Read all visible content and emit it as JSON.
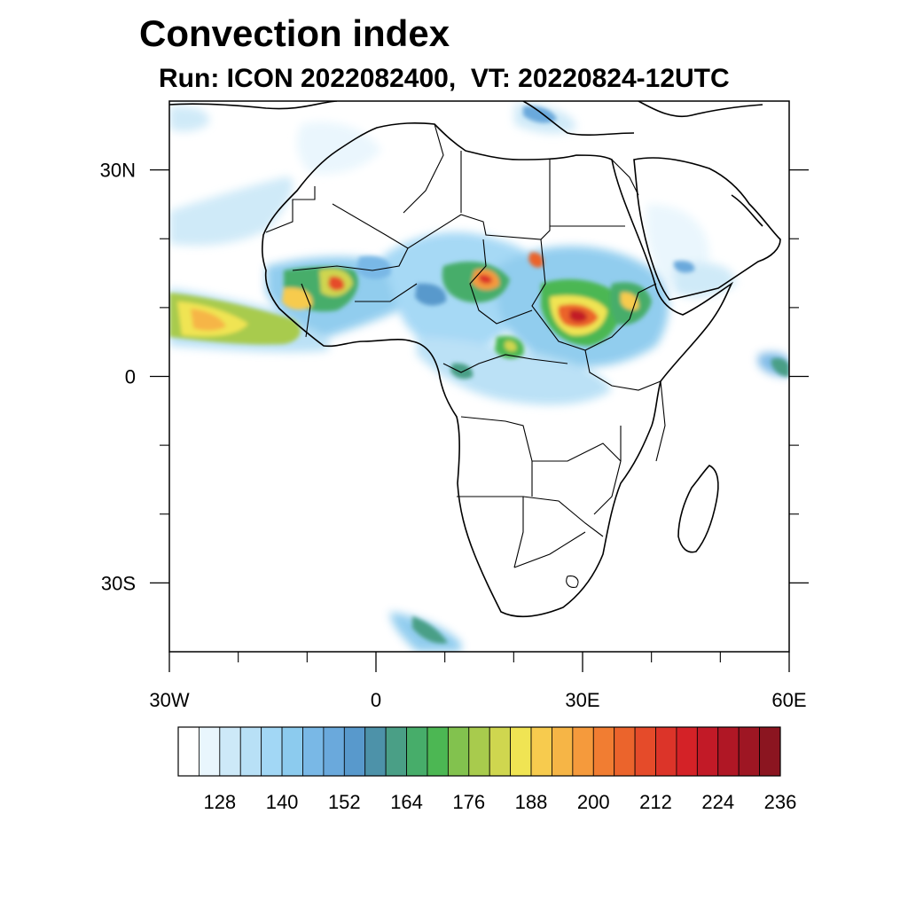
{
  "title": "Convection index",
  "subtitle": "Run: ICON 2022082400,  VT: 20220824-12UTC",
  "axes": {
    "lon_min": -30,
    "lon_max": 60,
    "lat_min": -40,
    "lat_max": 40,
    "lon_ticks": [
      {
        "value": -30,
        "label": "30W"
      },
      {
        "value": 0,
        "label": "0"
      },
      {
        "value": 30,
        "label": "30E"
      },
      {
        "value": 60,
        "label": "60E"
      }
    ],
    "lat_ticks": [
      {
        "value": 30,
        "label": "30N"
      },
      {
        "value": 0,
        "label": "0"
      },
      {
        "value": -30,
        "label": "30S"
      }
    ],
    "minor_lon": [
      -20,
      -10,
      10,
      20,
      40,
      50
    ],
    "minor_lat": [
      20,
      10,
      -10,
      -20
    ]
  },
  "colorbar": {
    "levels": [
      120,
      124,
      128,
      132,
      136,
      140,
      144,
      148,
      152,
      156,
      160,
      164,
      168,
      172,
      176,
      180,
      184,
      188,
      192,
      196,
      200,
      204,
      208,
      212,
      216,
      220,
      224,
      228,
      232,
      236,
      240
    ],
    "colors": [
      "#ffffff",
      "#e9f6fd",
      "#cde9f8",
      "#b8e0f6",
      "#a2d7f5",
      "#8ccbee",
      "#79b8e6",
      "#6aa9dc",
      "#5899cc",
      "#4d92a9",
      "#4a9f86",
      "#47ad6a",
      "#4cb753",
      "#82c24e",
      "#a8cb4d",
      "#cfd64f",
      "#f0e453",
      "#f7cb4e",
      "#f6b546",
      "#f59a3c",
      "#f17d32",
      "#eb642c",
      "#e54b2a",
      "#dc3429",
      "#d42227",
      "#c21a27",
      "#b01725",
      "#9e1623",
      "#8b1520"
    ],
    "tick_labels": [
      "128",
      "140",
      "152",
      "164",
      "176",
      "188",
      "200",
      "212",
      "224",
      "236"
    ]
  },
  "field": {
    "units_min": 120,
    "units_max": 240
  }
}
